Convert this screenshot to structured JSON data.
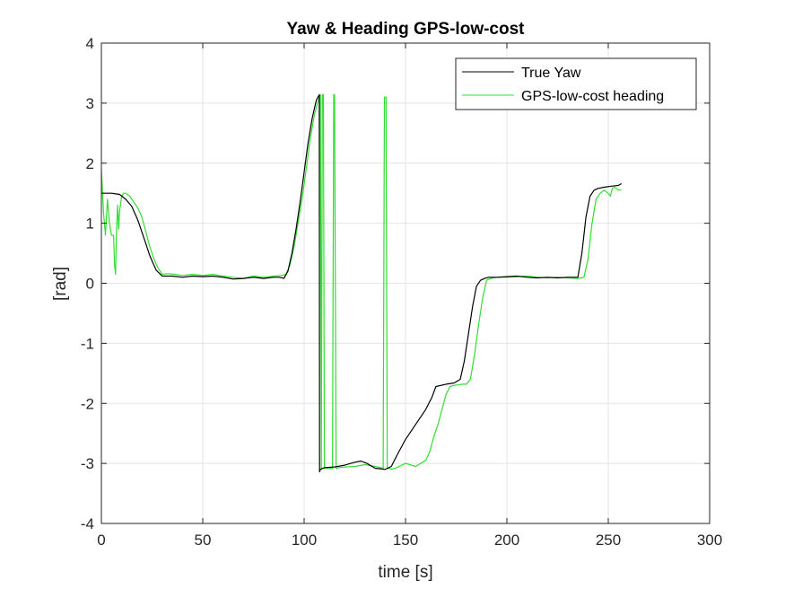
{
  "chart_data": {
    "type": "line",
    "title": "Yaw & Heading GPS-low-cost",
    "xlabel": "time [s]",
    "ylabel": "[rad]",
    "xlim": [
      0,
      300
    ],
    "ylim": [
      -4,
      4
    ],
    "xticks": [
      0,
      50,
      100,
      150,
      200,
      250,
      300
    ],
    "yticks": [
      -4,
      -3,
      -2,
      -1,
      0,
      1,
      2,
      3,
      4
    ],
    "grid": true,
    "legend_position": "top-right",
    "series": [
      {
        "name": "True Yaw",
        "color": "#000000",
        "x": [
          0,
          5,
          9,
          12,
          15,
          18,
          21,
          24,
          27,
          30,
          35,
          40,
          45,
          50,
          55,
          60,
          65,
          70,
          75,
          80,
          85,
          88,
          90,
          92,
          94,
          96,
          98,
          100,
          102,
          104,
          106,
          107.5,
          107.6,
          108,
          110,
          115,
          120,
          125,
          128,
          131,
          135,
          140,
          143,
          146,
          150,
          155,
          160,
          163,
          165,
          170,
          174,
          177,
          179,
          181,
          183,
          185,
          187,
          189,
          191,
          195,
          200,
          205,
          210,
          215,
          220,
          225,
          230,
          235,
          237,
          239,
          241,
          243,
          245,
          248,
          252,
          255,
          256.5
        ],
        "y": [
          1.5,
          1.5,
          1.48,
          1.4,
          1.28,
          1.05,
          0.75,
          0.45,
          0.22,
          0.12,
          0.12,
          0.1,
          0.12,
          0.11,
          0.12,
          0.1,
          0.07,
          0.08,
          0.1,
          0.08,
          0.1,
          0.1,
          0.08,
          0.2,
          0.5,
          0.9,
          1.35,
          1.85,
          2.35,
          2.75,
          3.05,
          3.14,
          -3.14,
          -3.1,
          -3.07,
          -3.06,
          -3.03,
          -2.98,
          -2.96,
          -3.0,
          -3.08,
          -3.1,
          -3.05,
          -2.85,
          -2.6,
          -2.35,
          -2.1,
          -1.9,
          -1.72,
          -1.68,
          -1.66,
          -1.6,
          -1.3,
          -0.85,
          -0.4,
          -0.05,
          0.05,
          0.08,
          0.1,
          0.1,
          0.11,
          0.12,
          0.1,
          0.09,
          0.1,
          0.09,
          0.1,
          0.1,
          0.5,
          1.1,
          1.45,
          1.55,
          1.58,
          1.6,
          1.62,
          1.63,
          1.66
        ]
      },
      {
        "name": "GPS-low-cost heading",
        "color": "#33dd33",
        "x": [
          0,
          1,
          2,
          3,
          4,
          5,
          6,
          6.5,
          7,
          7.5,
          8,
          8.5,
          9,
          10,
          11,
          12,
          14,
          16,
          18,
          20,
          22,
          24,
          26,
          28,
          30,
          33,
          36,
          40,
          45,
          50,
          55,
          60,
          65,
          70,
          75,
          80,
          85,
          89,
          91,
          93,
          95,
          97,
          99,
          101,
          103,
          105,
          107,
          108,
          108.5,
          109,
          109.5,
          110,
          112,
          114,
          114.6,
          115,
          115.8,
          116.2,
          117,
          120,
          125,
          130,
          135,
          139,
          139.6,
          140.4,
          141,
          142.4,
          143,
          145,
          150,
          155,
          160,
          162,
          164,
          166,
          168,
          170,
          172,
          174,
          178,
          180,
          182,
          184,
          186,
          188,
          190,
          192,
          195,
          200,
          205,
          210,
          215,
          220,
          225,
          230,
          235,
          238,
          240,
          242,
          244,
          246,
          248,
          250,
          251,
          252,
          253,
          254,
          255,
          256.5
        ],
        "y": [
          1.9,
          1.2,
          0.8,
          1.4,
          1.0,
          0.8,
          0.8,
          0.3,
          0.15,
          0.9,
          1.3,
          0.9,
          1.2,
          1.45,
          1.5,
          1.5,
          1.45,
          1.35,
          1.25,
          1.1,
          0.85,
          0.6,
          0.4,
          0.25,
          0.15,
          0.16,
          0.15,
          0.13,
          0.15,
          0.13,
          0.15,
          0.12,
          0.1,
          0.08,
          0.12,
          0.1,
          0.12,
          0.13,
          0.15,
          0.3,
          0.6,
          1.0,
          1.4,
          1.9,
          2.4,
          2.8,
          3.05,
          3.14,
          -3.1,
          3.14,
          3.14,
          -3.08,
          -3.08,
          -3.09,
          3.14,
          3.14,
          -3.08,
          -3.08,
          -3.07,
          -3.06,
          -3.05,
          -3.02,
          -3.05,
          -3.08,
          3.1,
          3.1,
          -3.08,
          -3.08,
          -3.1,
          -3.08,
          -3.0,
          -3.05,
          -2.95,
          -2.8,
          -2.55,
          -2.35,
          -2.1,
          -1.85,
          -1.72,
          -1.7,
          -1.68,
          -1.68,
          -1.6,
          -1.2,
          -0.7,
          -0.25,
          0.05,
          0.08,
          0.1,
          0.1,
          0.11,
          0.12,
          0.1,
          0.09,
          0.1,
          0.09,
          0.08,
          0.1,
          0.4,
          1.0,
          1.4,
          1.5,
          1.55,
          1.5,
          1.45,
          1.58,
          1.6,
          1.58,
          1.55,
          1.55
        ]
      }
    ]
  }
}
